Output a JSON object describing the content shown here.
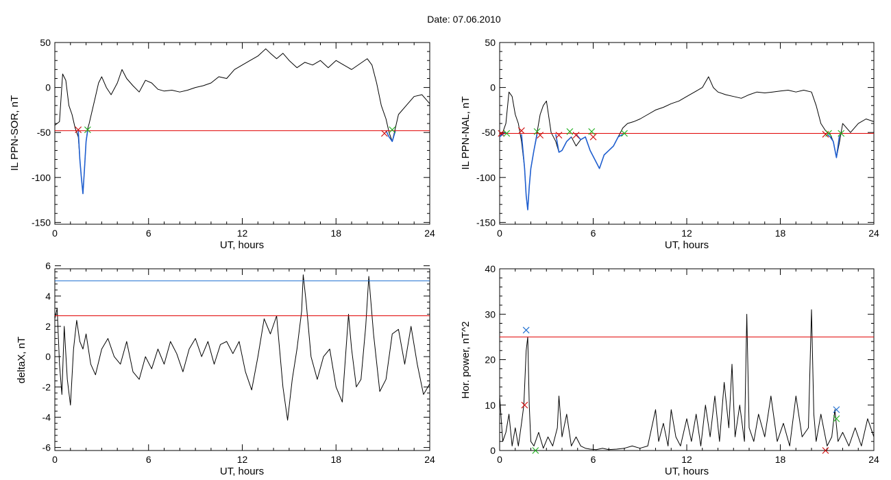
{
  "figure_title": "Date:  07.06.2010",
  "colors": {
    "data_line": "#000000",
    "selected_segment": "#1f5fd0",
    "threshold_red": "#e00000",
    "threshold_blue": "#1f6fd0",
    "marker_red": "#d01010",
    "marker_green": "#20b020",
    "marker_blue": "#1f6fd0"
  },
  "chart_data": [
    {
      "type": "line",
      "xlabel": "UT, hours",
      "ylabel": "IL PPN-SOR, nT",
      "xlim": [
        0,
        24
      ],
      "ylim": [
        -152,
        50
      ],
      "xticks": [
        0,
        6,
        12,
        18,
        24
      ],
      "yticks": [
        50,
        0,
        -50,
        -100,
        -150
      ],
      "series": [
        {
          "style": "main",
          "x": [
            0,
            0.3,
            0.5,
            0.7,
            0.9,
            1.1,
            1.3,
            1.5,
            1.6,
            1.7,
            1.8,
            1.9,
            2.0,
            2.1,
            2.2,
            2.4,
            2.6,
            2.8,
            3.0,
            3.3,
            3.6,
            4.0,
            4.3,
            4.6,
            5.0,
            5.4,
            5.8,
            6.2,
            6.6,
            7.0,
            7.5,
            8.0,
            8.5,
            9.0,
            9.5,
            10.0,
            10.5,
            11.0,
            11.5,
            12.0,
            12.5,
            13.0,
            13.5,
            13.8,
            14.2,
            14.6,
            15.0,
            15.5,
            16.0,
            16.5,
            17.0,
            17.5,
            18.0,
            18.5,
            19.0,
            19.5,
            20.0,
            20.3,
            20.6,
            20.9,
            21.2,
            21.4,
            21.6,
            21.8,
            22.0,
            22.5,
            23.0,
            23.5,
            24.0
          ],
          "y": [
            -42,
            -38,
            15,
            8,
            -20,
            -30,
            -45,
            -55,
            -80,
            -100,
            -118,
            -90,
            -60,
            -46,
            -40,
            -25,
            -10,
            5,
            12,
            0,
            -8,
            5,
            20,
            10,
            2,
            -5,
            8,
            5,
            -2,
            -4,
            -3,
            -5,
            -3,
            0,
            2,
            5,
            12,
            10,
            20,
            25,
            30,
            35,
            43,
            38,
            32,
            38,
            30,
            22,
            28,
            25,
            30,
            22,
            30,
            25,
            20,
            26,
            32,
            25,
            5,
            -20,
            -35,
            -50,
            -60,
            -45,
            -30,
            -20,
            -10,
            -8,
            -18
          ]
        },
        {
          "style": "selected",
          "x": [
            1.5,
            1.6,
            1.7,
            1.8,
            1.9,
            2.0,
            2.1
          ],
          "y": [
            -48,
            -80,
            -100,
            -118,
            -90,
            -60,
            -48
          ]
        },
        {
          "style": "selected",
          "x": [
            21.2,
            21.4,
            21.6,
            21.8
          ],
          "y": [
            -48,
            -55,
            -60,
            -48
          ]
        }
      ],
      "threshold_lines": [
        {
          "y": -48,
          "color": "red"
        }
      ],
      "markers": [
        {
          "x": 1.5,
          "y": -47,
          "color": "red"
        },
        {
          "x": 2.1,
          "y": -47,
          "color": "green"
        },
        {
          "x": 21.1,
          "y": -51,
          "color": "red"
        },
        {
          "x": 21.6,
          "y": -47,
          "color": "green"
        }
      ]
    },
    {
      "type": "line",
      "xlabel": "UT, hours",
      "ylabel": "IL PPN-NAL, nT",
      "xlim": [
        0,
        24
      ],
      "ylim": [
        -152,
        50
      ],
      "xticks": [
        0,
        6,
        12,
        18,
        24
      ],
      "yticks": [
        50,
        0,
        -50,
        -100,
        -150
      ],
      "series": [
        {
          "style": "main",
          "x": [
            0,
            0.2,
            0.4,
            0.6,
            0.8,
            1.0,
            1.2,
            1.4,
            1.6,
            1.7,
            1.8,
            1.9,
            2.0,
            2.2,
            2.4,
            2.6,
            2.8,
            3.0,
            3.3,
            3.6,
            3.8,
            4.0,
            4.3,
            4.6,
            4.9,
            5.2,
            5.5,
            5.8,
            6.1,
            6.4,
            6.7,
            7.0,
            7.3,
            7.6,
            7.9,
            8.2,
            8.6,
            9.0,
            9.5,
            10.0,
            10.5,
            11.0,
            11.5,
            12.0,
            12.5,
            13.0,
            13.4,
            13.7,
            14.0,
            14.5,
            15.0,
            15.5,
            16.0,
            16.5,
            17.0,
            17.5,
            18.0,
            18.5,
            19.0,
            19.5,
            20.0,
            20.3,
            20.6,
            20.9,
            21.2,
            21.4,
            21.6,
            21.8,
            22.0,
            22.5,
            23.0,
            23.5,
            24.0
          ],
          "y": [
            -55,
            -50,
            -40,
            -5,
            -10,
            -30,
            -40,
            -60,
            -90,
            -120,
            -136,
            -110,
            -90,
            -70,
            -50,
            -30,
            -20,
            -15,
            -50,
            -60,
            -72,
            -70,
            -60,
            -55,
            -65,
            -58,
            -55,
            -70,
            -80,
            -90,
            -75,
            -70,
            -65,
            -55,
            -45,
            -40,
            -38,
            -35,
            -30,
            -25,
            -22,
            -18,
            -15,
            -10,
            -5,
            0,
            12,
            0,
            -5,
            -8,
            -10,
            -12,
            -8,
            -5,
            -6,
            -5,
            -4,
            -3,
            -5,
            -3,
            -5,
            -20,
            -40,
            -48,
            -52,
            -60,
            -78,
            -60,
            -40,
            -50,
            -40,
            -35,
            -38
          ]
        },
        {
          "style": "selected",
          "x": [
            0,
            0.2,
            0.4
          ],
          "y": [
            -55,
            -52,
            -50
          ]
        },
        {
          "style": "selected",
          "x": [
            1.4,
            1.6,
            1.7,
            1.8,
            1.9,
            2.0,
            2.2,
            2.4
          ],
          "y": [
            -52,
            -90,
            -120,
            -136,
            -110,
            -90,
            -70,
            -52
          ]
        },
        {
          "style": "selected",
          "x": [
            3.6,
            3.8,
            4.0,
            4.3,
            4.6
          ],
          "y": [
            -52,
            -72,
            -70,
            -60,
            -55
          ]
        },
        {
          "style": "selected",
          "x": [
            4.9,
            5.2,
            5.5,
            5.8,
            6.1,
            6.4,
            6.7,
            7.0,
            7.3,
            7.6,
            7.9
          ],
          "y": [
            -52,
            -58,
            -55,
            -70,
            -80,
            -90,
            -75,
            -70,
            -65,
            -55,
            -52
          ]
        },
        {
          "style": "selected",
          "x": [
            21.0,
            21.2,
            21.4,
            21.6,
            21.8
          ],
          "y": [
            -52,
            -55,
            -60,
            -78,
            -52
          ]
        }
      ],
      "threshold_lines": [
        {
          "y": -51,
          "color": "red"
        }
      ],
      "markers": [
        {
          "x": 0.1,
          "y": -51,
          "color": "red"
        },
        {
          "x": 0.45,
          "y": -51,
          "color": "green"
        },
        {
          "x": 1.4,
          "y": -48,
          "color": "red"
        },
        {
          "x": 2.4,
          "y": -49,
          "color": "green"
        },
        {
          "x": 2.6,
          "y": -53,
          "color": "red"
        },
        {
          "x": 3.8,
          "y": -53,
          "color": "red"
        },
        {
          "x": 4.5,
          "y": -49,
          "color": "green"
        },
        {
          "x": 4.9,
          "y": -53,
          "color": "red"
        },
        {
          "x": 5.9,
          "y": -49,
          "color": "green"
        },
        {
          "x": 6.0,
          "y": -55,
          "color": "red"
        },
        {
          "x": 8.0,
          "y": -51,
          "color": "green"
        },
        {
          "x": 20.9,
          "y": -52,
          "color": "red"
        },
        {
          "x": 21.1,
          "y": -51,
          "color": "green"
        },
        {
          "x": 21.9,
          "y": -51,
          "color": "green"
        }
      ]
    },
    {
      "type": "line",
      "xlabel": "UT, hours",
      "ylabel": "deltaX, nT",
      "xlim": [
        0,
        24
      ],
      "ylim": [
        -6.2,
        5.8
      ],
      "xticks": [
        0,
        6,
        12,
        18,
        24
      ],
      "yticks": [
        6,
        4,
        2,
        0,
        -2,
        -4,
        -6
      ],
      "series": [
        {
          "style": "main",
          "x": [
            0,
            0.15,
            0.3,
            0.45,
            0.6,
            0.8,
            1.0,
            1.2,
            1.4,
            1.6,
            1.8,
            2.0,
            2.3,
            2.6,
            3.0,
            3.4,
            3.8,
            4.2,
            4.6,
            5.0,
            5.4,
            5.8,
            6.2,
            6.6,
            7.0,
            7.4,
            7.8,
            8.2,
            8.6,
            9.0,
            9.4,
            9.8,
            10.2,
            10.6,
            11.0,
            11.4,
            11.8,
            12.2,
            12.6,
            13.0,
            13.4,
            13.8,
            14.2,
            14.6,
            14.9,
            15.2,
            15.5,
            15.8,
            15.9,
            16.1,
            16.4,
            16.8,
            17.2,
            17.6,
            18.0,
            18.4,
            18.8,
            19.0,
            19.3,
            19.6,
            19.9,
            20.1,
            20.4,
            20.8,
            21.2,
            21.6,
            22.0,
            22.4,
            22.8,
            23.2,
            23.6,
            24.0
          ],
          "y": [
            2.5,
            3.2,
            -0.5,
            -2.5,
            2.0,
            -1.5,
            -3.2,
            0.5,
            2.4,
            1.0,
            0.5,
            1.5,
            -0.5,
            -1.2,
            0.5,
            1.2,
            0.0,
            -0.5,
            1.0,
            -1.0,
            -1.5,
            0.0,
            -0.8,
            0.5,
            -0.5,
            1.0,
            0.2,
            -1.0,
            0.5,
            1.2,
            0.0,
            1.0,
            -0.5,
            0.8,
            1.0,
            0.2,
            1.0,
            -1.0,
            -2.2,
            0.0,
            2.5,
            1.5,
            2.7,
            -2.0,
            -4.2,
            -1.5,
            0.5,
            3.0,
            5.4,
            3.5,
            0.0,
            -1.5,
            0.0,
            0.5,
            -2.0,
            -3.0,
            2.8,
            0.5,
            -2.0,
            -1.5,
            2.0,
            5.3,
            1.5,
            -2.3,
            -1.5,
            1.5,
            1.8,
            -0.5,
            2.0,
            -0.5,
            -2.5,
            -1.8
          ]
        }
      ],
      "threshold_lines": [
        {
          "y": 5.0,
          "color": "blue"
        },
        {
          "y": 2.7,
          "color": "red"
        }
      ],
      "markers": []
    },
    {
      "type": "line",
      "xlabel": "UT, hours",
      "ylabel": "Hor. power, nT^2",
      "xlim": [
        0,
        24
      ],
      "ylim": [
        0,
        40
      ],
      "xticks": [
        0,
        6,
        12,
        18,
        24
      ],
      "yticks": [
        40,
        30,
        20,
        10,
        0
      ],
      "series": [
        {
          "style": "main",
          "x": [
            0,
            0.2,
            0.4,
            0.6,
            0.8,
            1.0,
            1.2,
            1.4,
            1.55,
            1.7,
            1.8,
            1.9,
            2.0,
            2.2,
            2.5,
            2.8,
            3.1,
            3.4,
            3.7,
            3.8,
            4.0,
            4.3,
            4.6,
            4.9,
            5.2,
            5.5,
            5.8,
            6.2,
            6.6,
            7.0,
            7.5,
            8.0,
            8.5,
            9.0,
            9.5,
            10.0,
            10.2,
            10.5,
            10.8,
            11.0,
            11.3,
            11.6,
            12.0,
            12.3,
            12.6,
            12.9,
            13.2,
            13.5,
            13.8,
            14.1,
            14.4,
            14.7,
            14.9,
            15.1,
            15.4,
            15.7,
            15.85,
            16.0,
            16.3,
            16.6,
            17.0,
            17.4,
            17.8,
            18.2,
            18.6,
            19.0,
            19.4,
            19.8,
            20.0,
            20.15,
            20.3,
            20.6,
            21.0,
            21.3,
            21.5,
            21.7,
            22.0,
            22.4,
            22.8,
            23.2,
            23.6,
            24.0
          ],
          "y": [
            12,
            2,
            4,
            8,
            1,
            5,
            1,
            6,
            10,
            22,
            25,
            10,
            2,
            1,
            4,
            0.5,
            3,
            1,
            5,
            12,
            3,
            8,
            1,
            3,
            1,
            0.5,
            0.3,
            0.2,
            0.5,
            0.2,
            0.3,
            0.5,
            1,
            0.5,
            1,
            9,
            2,
            6,
            1,
            9,
            3,
            1,
            7,
            2,
            8,
            1,
            10,
            3,
            12,
            2,
            15,
            5,
            19,
            3,
            10,
            2,
            30,
            5,
            2,
            8,
            3,
            12,
            2,
            6,
            1,
            12,
            3,
            5,
            31,
            8,
            2,
            8,
            1,
            3,
            9,
            2,
            4,
            1,
            5,
            1,
            7,
            3
          ]
        }
      ],
      "threshold_lines": [
        {
          "y": 25,
          "color": "red"
        }
      ],
      "markers": [
        {
          "x": 1.7,
          "y": 26.5,
          "color": "blue"
        },
        {
          "x": 1.6,
          "y": 10,
          "color": "red"
        },
        {
          "x": 2.3,
          "y": 0,
          "color": "green"
        },
        {
          "x": 21.6,
          "y": 9,
          "color": "blue"
        },
        {
          "x": 21.6,
          "y": 7,
          "color": "green"
        },
        {
          "x": 20.9,
          "y": 0,
          "color": "red"
        }
      ]
    }
  ]
}
